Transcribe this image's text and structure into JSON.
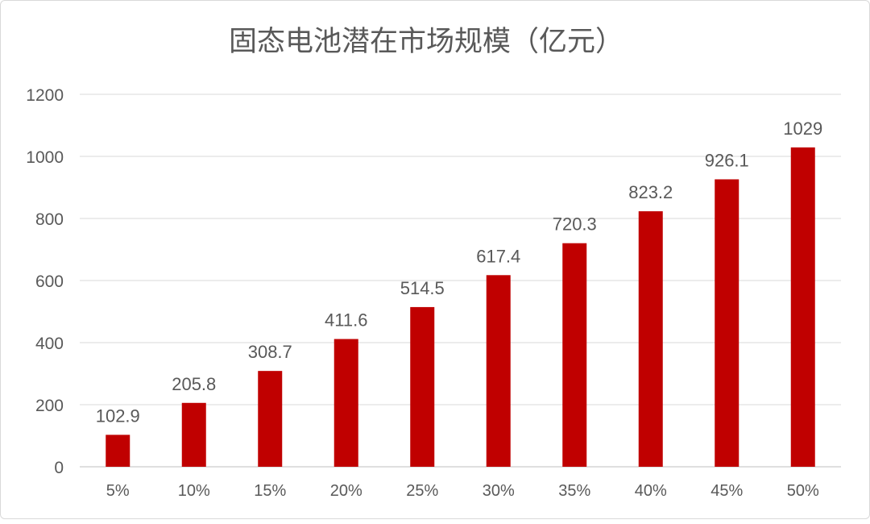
{
  "chart_data": {
    "type": "bar",
    "title": "固态电池潜在市场规模（亿元）",
    "xlabel": "",
    "ylabel": "",
    "categories": [
      "5%",
      "10%",
      "15%",
      "20%",
      "25%",
      "30%",
      "35%",
      "40%",
      "45%",
      "50%"
    ],
    "values": [
      102.9,
      205.8,
      308.7,
      411.6,
      514.5,
      617.4,
      720.3,
      823.2,
      926.1,
      1029
    ],
    "data_labels": [
      "102.9",
      "205.8",
      "308.7",
      "411.6",
      "514.5",
      "617.4",
      "720.3",
      "823.2",
      "926.1",
      "1029"
    ],
    "ylim": [
      0,
      1200
    ],
    "yticks": [
      0,
      200,
      400,
      600,
      800,
      1000,
      1200
    ],
    "grid": true,
    "legend": "none",
    "colors": {
      "bar": "#C00000",
      "grid": "#d9d9d9",
      "text": "#595959"
    }
  }
}
